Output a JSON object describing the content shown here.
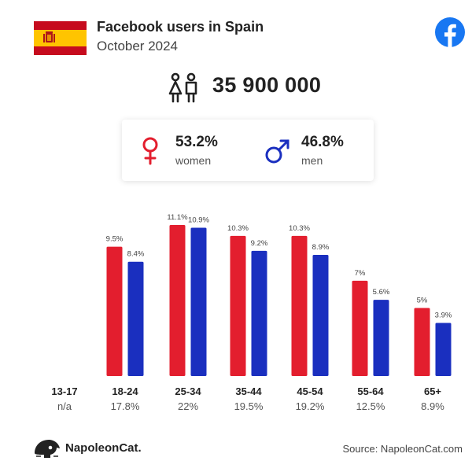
{
  "header": {
    "title": "Facebook users in Spain",
    "subtitle": "October 2024"
  },
  "total_users": "35 900 000",
  "gender": {
    "women": {
      "percent": "53.2%",
      "label": "women"
    },
    "men": {
      "percent": "46.8%",
      "label": "men"
    }
  },
  "colors": {
    "women": "#e31e2e",
    "men": "#1a2fbf",
    "flag_red": "#c60b1e",
    "flag_yellow": "#ffc400",
    "facebook": "#1877f2"
  },
  "icons": {
    "flag": "spain-flag-icon",
    "facebook": "facebook-logo-icon",
    "users": "users-icon",
    "female": "female-symbol-icon",
    "male": "male-symbol-icon",
    "brand": "napoleoncat-logo-icon"
  },
  "chart_data": {
    "type": "bar",
    "categories": [
      "13-17",
      "18-24",
      "25-34",
      "35-44",
      "45-54",
      "55-64",
      "65+"
    ],
    "category_totals": [
      "n/a",
      "17.8%",
      "22%",
      "19.5%",
      "19.2%",
      "12.5%",
      "8.9%"
    ],
    "series": [
      {
        "name": "women",
        "values": [
          null,
          9.5,
          11.1,
          10.3,
          10.3,
          7,
          5
        ],
        "labels": [
          "",
          "9.5%",
          "11.1%",
          "10.3%",
          "10.3%",
          "7%",
          "5%"
        ]
      },
      {
        "name": "men",
        "values": [
          null,
          8.4,
          10.9,
          9.2,
          8.9,
          5.6,
          3.9
        ],
        "labels": [
          "",
          "8.4%",
          "10.9%",
          "9.2%",
          "8.9%",
          "5.6%",
          "3.9%"
        ]
      }
    ],
    "ylim": [
      0,
      11.1
    ],
    "grid": false,
    "legend": "none"
  },
  "footer": {
    "brand": "NapoleonCat.",
    "source": "Source: NapoleonCat.com"
  }
}
